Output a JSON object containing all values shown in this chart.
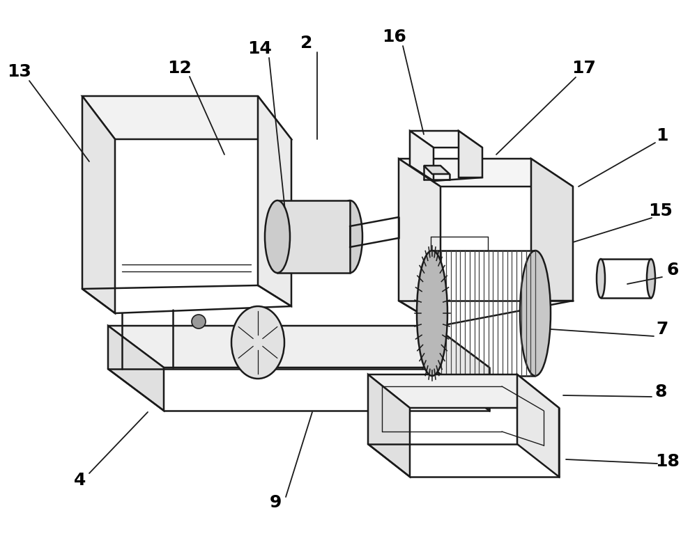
{
  "bg_color": "#ffffff",
  "line_color": "#1a1a1a",
  "lw_main": 1.8,
  "lw_label": 1.3,
  "font_size": 18,
  "fig_width": 10.0,
  "fig_height": 7.83,
  "label_data": [
    [
      "1",
      950,
      195,
      940,
      205,
      830,
      268
    ],
    [
      "2",
      440,
      62,
      455,
      75,
      455,
      200
    ],
    [
      "4",
      115,
      690,
      128,
      680,
      212,
      592
    ],
    [
      "6",
      965,
      388,
      950,
      398,
      900,
      408
    ],
    [
      "7",
      950,
      473,
      938,
      483,
      790,
      473
    ],
    [
      "8",
      948,
      563,
      935,
      570,
      808,
      568
    ],
    [
      "9",
      395,
      722,
      410,
      714,
      448,
      592
    ],
    [
      "12",
      258,
      98,
      272,
      110,
      322,
      222
    ],
    [
      "13",
      28,
      103,
      42,
      116,
      128,
      232
    ],
    [
      "14",
      373,
      70,
      386,
      83,
      410,
      312
    ],
    [
      "15",
      948,
      303,
      935,
      313,
      822,
      348
    ],
    [
      "16",
      566,
      53,
      578,
      66,
      608,
      193
    ],
    [
      "17",
      838,
      98,
      826,
      111,
      712,
      222
    ],
    [
      "18",
      958,
      663,
      943,
      666,
      812,
      660
    ]
  ]
}
